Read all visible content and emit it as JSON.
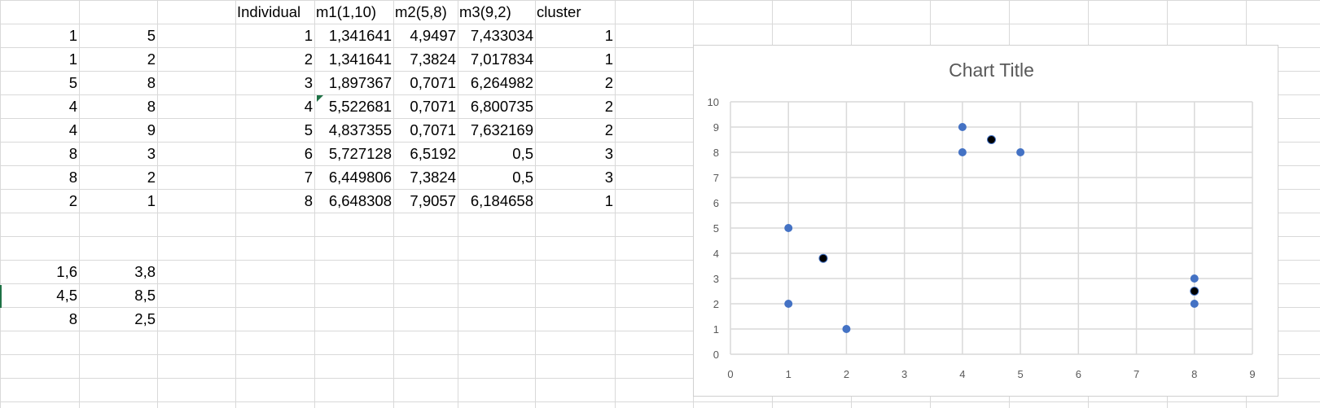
{
  "sheet": {
    "header": {
      "individual": "Individual",
      "m1": "m1(1,10)",
      "m2": "m2(5,8)",
      "m3": "m3(9,2)",
      "cluster": "cluster"
    },
    "points": [
      {
        "a": "1",
        "b": "5"
      },
      {
        "a": "1",
        "b": "2"
      },
      {
        "a": "5",
        "b": "8"
      },
      {
        "a": "4",
        "b": "8"
      },
      {
        "a": "4",
        "b": "9"
      },
      {
        "a": "8",
        "b": "3"
      },
      {
        "a": "8",
        "b": "2"
      },
      {
        "a": "2",
        "b": "1"
      }
    ],
    "rows": [
      {
        "individual": "1",
        "m1": "1,341641",
        "m2": "4,9497",
        "m3": "7,433034",
        "cluster": "1"
      },
      {
        "individual": "2",
        "m1": "1,341641",
        "m2": "7,3824",
        "m3": "7,017834",
        "cluster": "1"
      },
      {
        "individual": "3",
        "m1": "1,897367",
        "m2": "0,7071",
        "m3": "6,264982",
        "cluster": "2"
      },
      {
        "individual": "4",
        "m1": "5,522681",
        "m2": "0,7071",
        "m3": "6,800735",
        "cluster": "2"
      },
      {
        "individual": "5",
        "m1": "4,837355",
        "m2": "0,7071",
        "m3": "7,632169",
        "cluster": "2"
      },
      {
        "individual": "6",
        "m1": "5,727128",
        "m2": "6,5192",
        "m3": "0,5",
        "cluster": "3"
      },
      {
        "individual": "7",
        "m1": "6,449806",
        "m2": "7,3824",
        "m3": "0,5",
        "cluster": "3"
      },
      {
        "individual": "8",
        "m1": "6,648308",
        "m2": "7,9057",
        "m3": "6,184658",
        "cluster": "1"
      }
    ],
    "centroids": [
      {
        "a": "1,6",
        "b": "3,8"
      },
      {
        "a": "4,5",
        "b": "8,5"
      },
      {
        "a": "8",
        "b": "2,5"
      }
    ]
  },
  "chart_data": {
    "type": "scatter",
    "title": "Chart Title",
    "xlim": [
      0,
      9
    ],
    "ylim": [
      0,
      10
    ],
    "x_ticks": [
      "0",
      "1",
      "2",
      "3",
      "4",
      "5",
      "6",
      "7",
      "8",
      "9"
    ],
    "y_ticks": [
      "0",
      "1",
      "2",
      "3",
      "4",
      "5",
      "6",
      "7",
      "8",
      "9",
      "10"
    ],
    "grid": true,
    "series": [
      {
        "color": "#4472c4",
        "points": [
          [
            1,
            5
          ],
          [
            1,
            2
          ],
          [
            5,
            8
          ],
          [
            4,
            8
          ],
          [
            4,
            9
          ],
          [
            8,
            3
          ],
          [
            8,
            2
          ],
          [
            2,
            1
          ]
        ]
      },
      {
        "color": "#000000",
        "points": [
          [
            1.6,
            3.8
          ],
          [
            4.5,
            8.5
          ],
          [
            8,
            2.5
          ]
        ]
      }
    ]
  }
}
